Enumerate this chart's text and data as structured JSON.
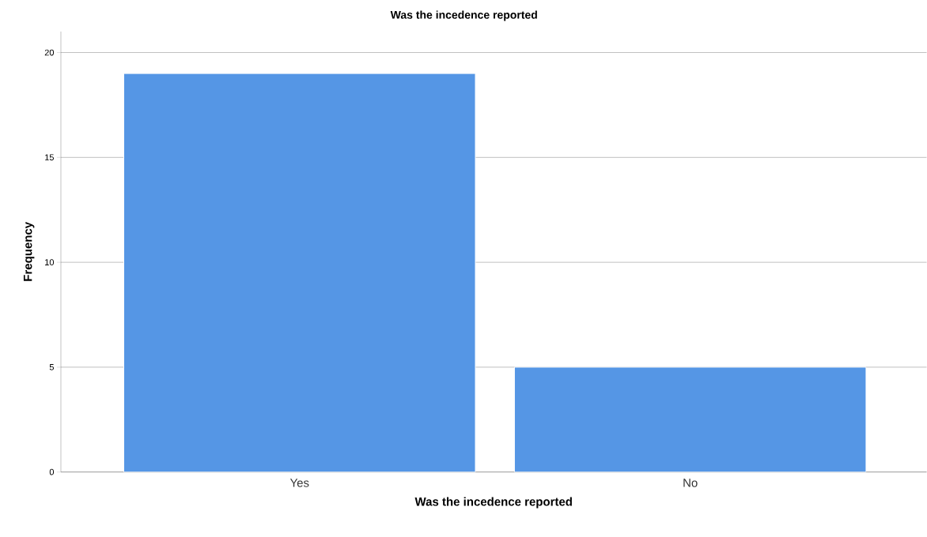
{
  "chart_data": {
    "type": "bar",
    "title": "Was the incedence reported",
    "xlabel": "Was the incedence reported",
    "ylabel": "Frequency",
    "categories": [
      "Yes",
      "No"
    ],
    "values": [
      19,
      5
    ],
    "color": "#5596e5",
    "ylim": [
      0,
      21
    ],
    "yticks": [
      0,
      5,
      10,
      15,
      20
    ],
    "grid": "y"
  }
}
